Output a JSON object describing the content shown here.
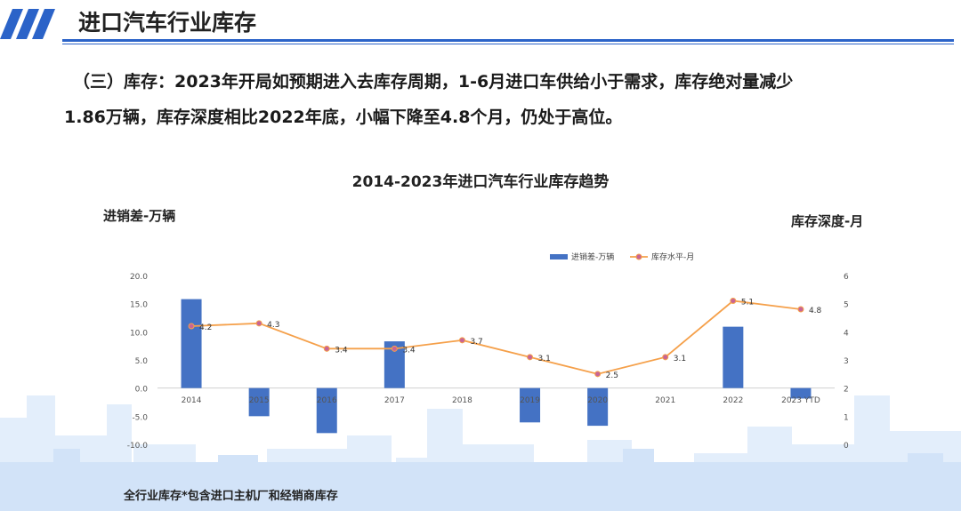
{
  "header": {
    "title": "进口汽车行业库存",
    "accent_color": "#2b63c8"
  },
  "summary": {
    "line1": "（三）库存：2023年开局如预期进入去库存周期，1-6月进口车供给小于需求，库存绝对量减少",
    "line2": "1.86万辆，库存深度相比2022年底，小幅下降至4.8个月，仍处于高位。"
  },
  "chart_data": {
    "type": "bar+line",
    "title": "2014-2023年进口汽车行业库存趋势",
    "left_axis_title": "进销差-万辆",
    "right_axis_title": "库存深度-月",
    "categories": [
      "2014",
      "2015",
      "2016",
      "2017",
      "2018",
      "2019",
      "2020",
      "2021",
      "2022",
      "2023 YTD"
    ],
    "left_ticks": [
      "20.0",
      "15.0",
      "10.0",
      "5.0",
      "0.0",
      "-5.0",
      "-10.0"
    ],
    "right_ticks": [
      "6",
      "5",
      "4",
      "3",
      "2",
      "1",
      "0"
    ],
    "ylim_left": [
      -10,
      20
    ],
    "ylim_right": [
      0,
      6
    ],
    "grid": false,
    "legend_position": "top-right",
    "series": [
      {
        "name": "进销差-万辆",
        "type": "bar",
        "axis": "left",
        "color": "#4472c4",
        "values": [
          15.8,
          -5.0,
          -8.0,
          8.3,
          0,
          -6.1,
          -6.7,
          0,
          10.9,
          -1.86
        ]
      },
      {
        "name": "库存水平-月",
        "type": "line",
        "axis": "right",
        "color": "#f5a04a",
        "marker_color": "#c86496",
        "values": [
          4.2,
          4.3,
          3.4,
          3.4,
          3.7,
          3.1,
          2.5,
          3.1,
          5.1,
          4.8
        ],
        "labels": [
          "4.2",
          "4.3",
          "3.4",
          "3.4",
          "3.7",
          "3.1",
          "2.5",
          "3.1",
          "5.1",
          "4.8"
        ]
      }
    ]
  },
  "footnote": "全行业库存*包含进口主机厂和经销商库存"
}
